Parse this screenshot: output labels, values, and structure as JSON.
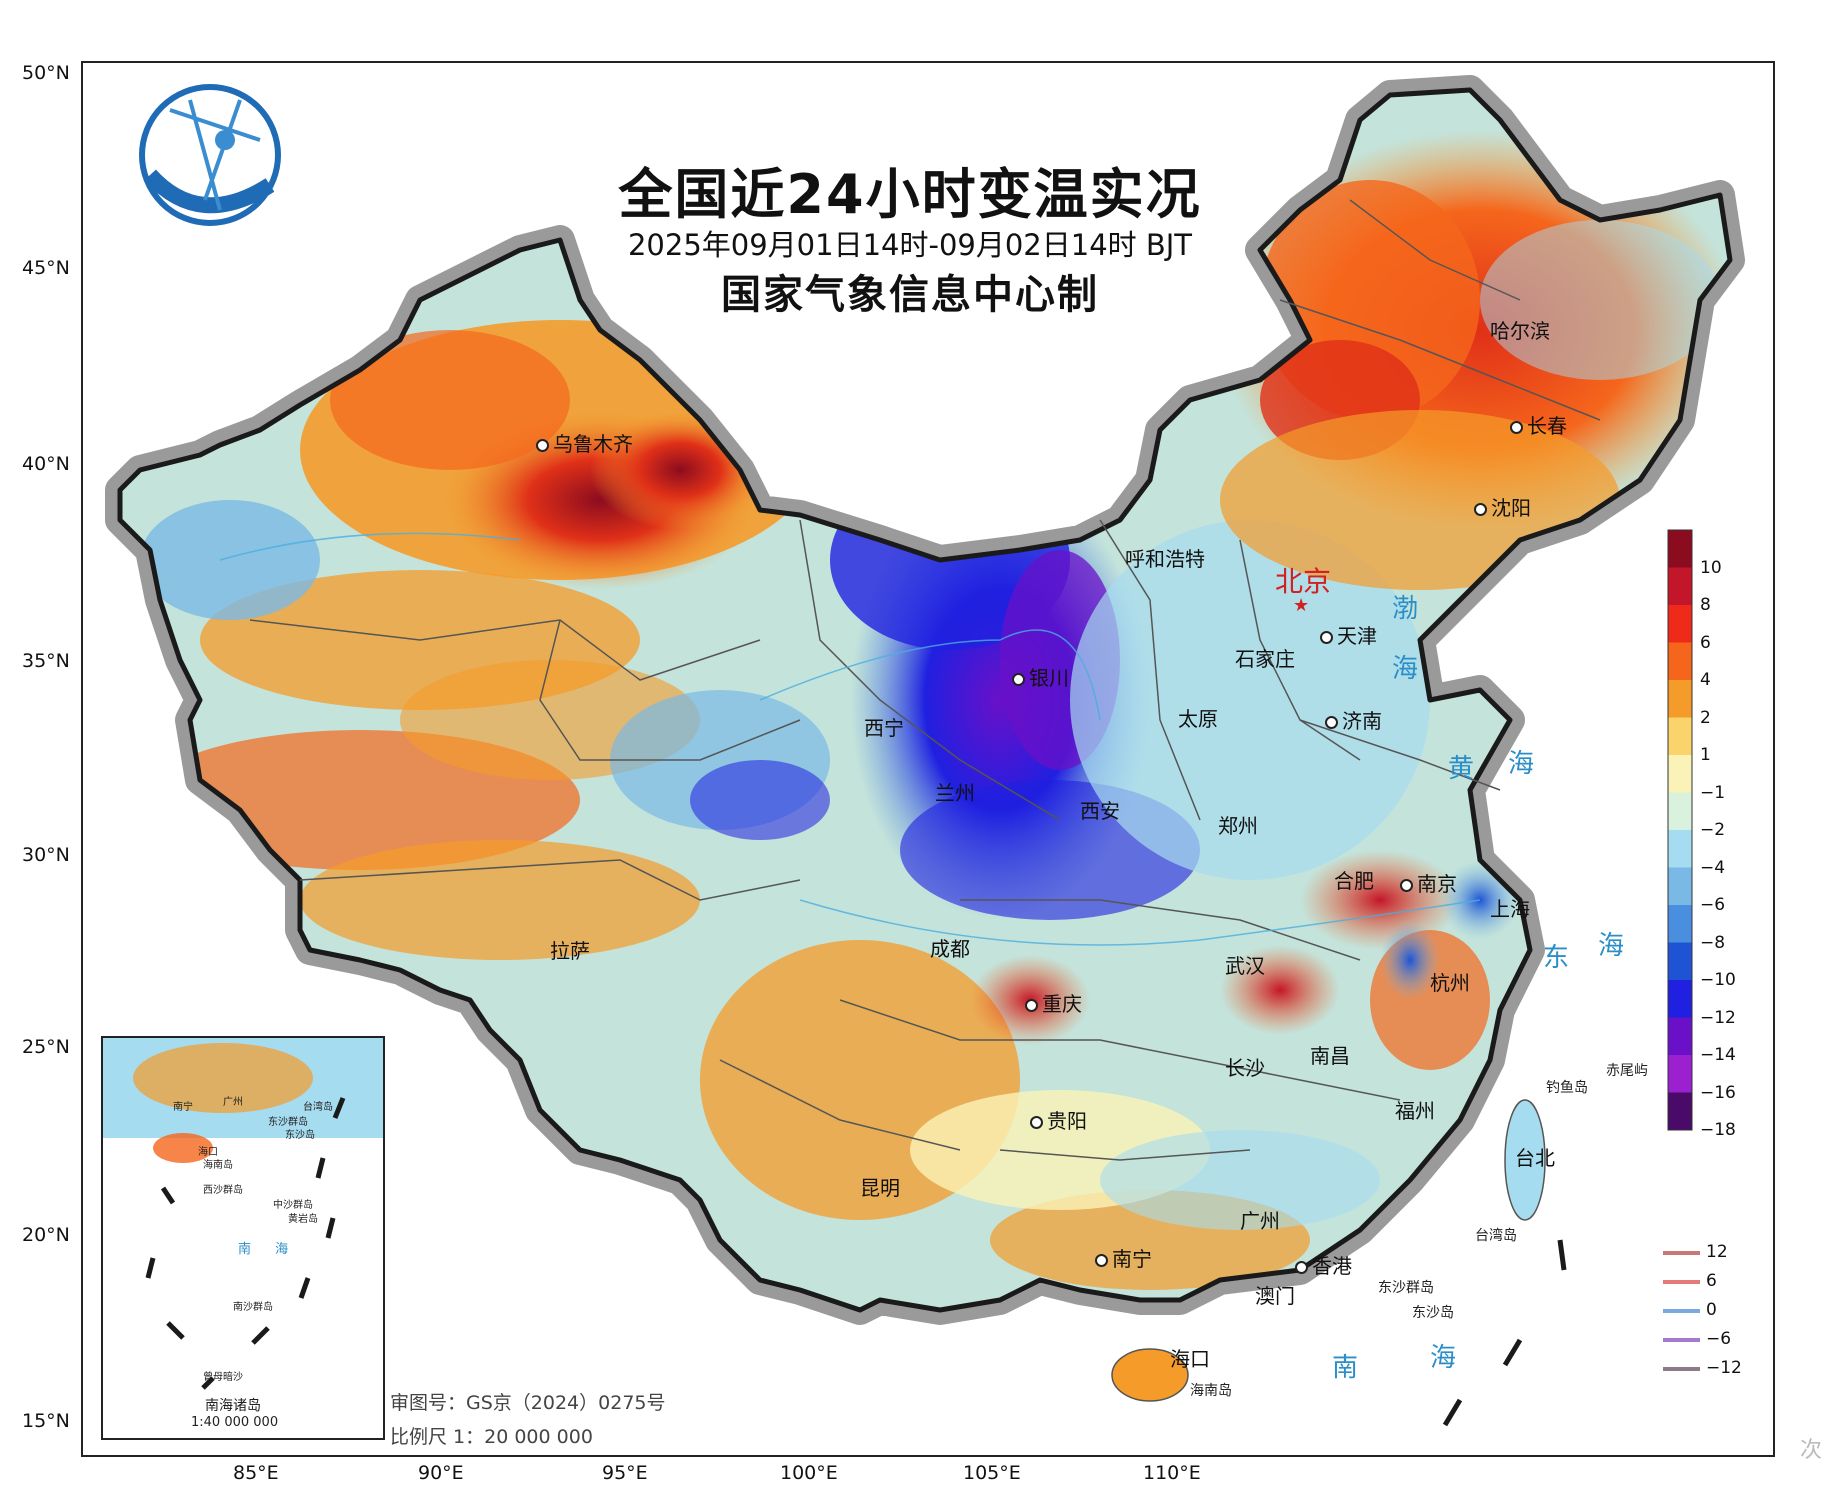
{
  "title": "全国近24小时变温实况",
  "subtitle": "2025年09月01日14时-09月02日14时 BJT",
  "producer": "国家气象信息中心制",
  "lat_labels": [
    "50°N",
    "45°N",
    "40°N",
    "35°N",
    "30°N",
    "25°N",
    "20°N",
    "15°N"
  ],
  "lon_labels": [
    "85°E",
    "90°E",
    "95°E",
    "100°E",
    "105°E",
    "110°E"
  ],
  "capital": "北京",
  "cities": [
    "乌鲁木齐",
    "呼和浩特",
    "天津",
    "石家庄",
    "银川",
    "太原",
    "济南",
    "西宁",
    "兰州",
    "郑州",
    "西安",
    "合肥",
    "南京",
    "上海",
    "拉萨",
    "成都",
    "武汉",
    "杭州",
    "重庆",
    "长沙",
    "南昌",
    "福州",
    "贵阳",
    "台北",
    "昆明",
    "广州",
    "南宁",
    "香港",
    "澳门",
    "海口",
    "哈尔滨",
    "长春",
    "沈阳"
  ],
  "seas": [
    "渤",
    "海",
    "黄",
    "海",
    "东",
    "海",
    "南",
    "海"
  ],
  "islands": [
    "钓鱼岛",
    "赤尾屿",
    "台湾岛",
    "东沙群岛",
    "东沙岛",
    "海南岛"
  ],
  "inset": {
    "title": "南海诸岛",
    "scale": "1:40 000 000",
    "sea": "南 海",
    "labels": [
      "南宁",
      "广州",
      "台湾岛",
      "东沙群岛",
      "东沙岛",
      "海口",
      "海南岛",
      "西沙群岛",
      "中沙群岛",
      "黄岩岛",
      "南沙群岛",
      "曾母暗沙"
    ]
  },
  "map_notes": {
    "approval": "审图号：GS京（2024）0275号",
    "scale": "比例尺 1：20 000 000"
  },
  "legend": {
    "labels": [
      "10",
      "8",
      "6",
      "4",
      "2",
      "1",
      "−1",
      "−2",
      "−4",
      "−6",
      "−8",
      "−10",
      "−12",
      "−14",
      "−16",
      "−18"
    ],
    "colors": [
      "#8c0c1f",
      "#c4162a",
      "#f02a1a",
      "#f5661c",
      "#f59b2a",
      "#fbd36b",
      "#fbf2b8",
      "#d9f2de",
      "#a6dcef",
      "#7ab9e5",
      "#4a8ee0",
      "#1e54d4",
      "#2020e0",
      "#6a10c8",
      "#9a20d0",
      "#4a0a6a"
    ]
  },
  "line_legend": {
    "labels": [
      "12",
      "6",
      "0",
      "−6",
      "−12"
    ],
    "colors": [
      "#c87878",
      "#e57a7a",
      "#7aa9e0",
      "#a678d0",
      "#8a7a8a"
    ]
  },
  "watermark": "次"
}
